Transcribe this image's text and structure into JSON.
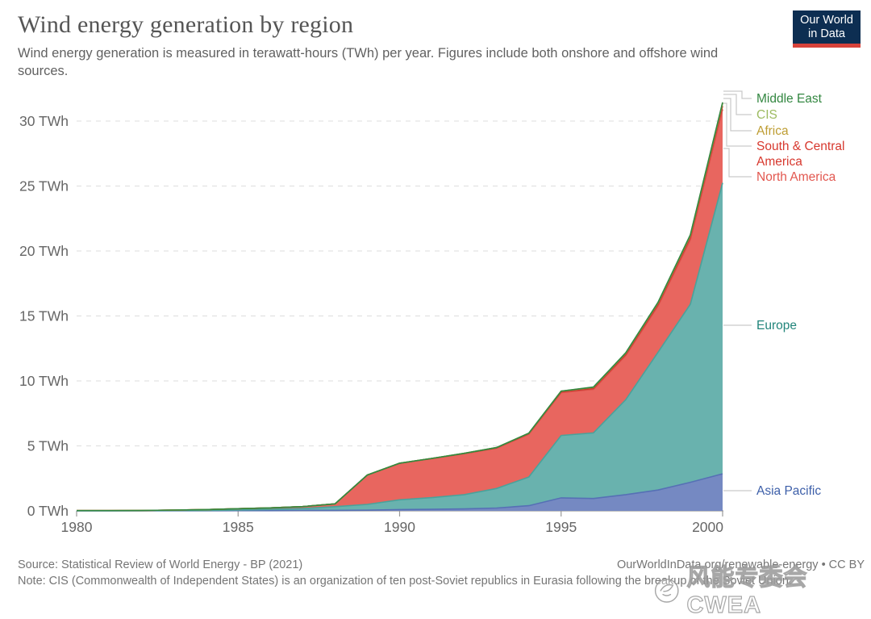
{
  "header": {
    "title": "Wind energy generation by region",
    "subtitle": "Wind energy generation is measured in terawatt-hours (TWh) per year. Figures include both onshore and offshore wind sources.",
    "logo_line1": "Our World",
    "logo_line2": "in Data",
    "logo_bg_color": "#0D2E52",
    "logo_bar_color": "#D7423A"
  },
  "chart_data": {
    "type": "area",
    "stacked": true,
    "title": "Wind energy generation by region",
    "xlabel": "",
    "ylabel": "",
    "unit": "TWh",
    "xlim": [
      1980,
      2000
    ],
    "ylim": [
      0,
      32
    ],
    "grid": "horizontal-dashed",
    "legend_position": "right-edge-connected",
    "x": [
      1980,
      1981,
      1982,
      1983,
      1984,
      1985,
      1986,
      1987,
      1988,
      1989,
      1990,
      1991,
      1992,
      1993,
      1994,
      1995,
      1996,
      1997,
      1998,
      1999,
      2000
    ],
    "xticks": [
      1980,
      1985,
      1990,
      1995,
      2000
    ],
    "yticks": [
      {
        "value": 0,
        "label": "0 TWh"
      },
      {
        "value": 5,
        "label": "5 TWh"
      },
      {
        "value": 10,
        "label": "10 TWh"
      },
      {
        "value": 15,
        "label": "15 TWh"
      },
      {
        "value": 20,
        "label": "20 TWh"
      },
      {
        "value": 25,
        "label": "25 TWh"
      },
      {
        "value": 30,
        "label": "30 TWh"
      }
    ],
    "series": [
      {
        "key": "asia-pacific",
        "name": "Asia Pacific",
        "color": "#3D5FA9",
        "fill": "#7589C2",
        "stroke": "#5670B5",
        "values": [
          0.0,
          0.0,
          0.0,
          0.01,
          0.01,
          0.02,
          0.02,
          0.03,
          0.04,
          0.05,
          0.1,
          0.12,
          0.15,
          0.22,
          0.4,
          1.0,
          0.95,
          1.25,
          1.6,
          2.2,
          2.85
        ]
      },
      {
        "key": "europe",
        "name": "Europe",
        "color": "#22857B",
        "fill": "#69B2AE",
        "stroke": "#4AA29B",
        "values": [
          0.01,
          0.01,
          0.01,
          0.02,
          0.03,
          0.05,
          0.09,
          0.15,
          0.28,
          0.45,
          0.75,
          0.9,
          1.1,
          1.5,
          2.2,
          4.8,
          5.05,
          7.3,
          10.6,
          13.7,
          22.4
        ]
      },
      {
        "key": "north-america",
        "name": "North America",
        "color": "#E2574F",
        "fill": "#E8665F",
        "stroke": "#DD544C",
        "values": [
          0.01,
          0.01,
          0.02,
          0.03,
          0.06,
          0.1,
          0.12,
          0.15,
          0.22,
          2.25,
          2.8,
          3.0,
          3.15,
          3.1,
          3.3,
          3.3,
          3.35,
          3.4,
          3.55,
          4.95,
          5.65
        ]
      },
      {
        "key": "south-central-america",
        "name": "South & Central America",
        "color": "#D7382E",
        "fill": "#D94F44",
        "stroke": "#C8392F",
        "values": [
          0,
          0,
          0,
          0,
          0,
          0,
          0,
          0,
          0,
          0.01,
          0.01,
          0.01,
          0.01,
          0.02,
          0.03,
          0.05,
          0.07,
          0.09,
          0.13,
          0.18,
          0.26
        ]
      },
      {
        "key": "africa",
        "name": "Africa",
        "color": "#BE9D33",
        "fill": "#C8A53D",
        "stroke": "#B3922A",
        "values": [
          0,
          0,
          0,
          0,
          0,
          0,
          0,
          0,
          0,
          0,
          0.01,
          0.01,
          0.02,
          0.03,
          0.04,
          0.06,
          0.08,
          0.1,
          0.13,
          0.16,
          0.2
        ]
      },
      {
        "key": "cis",
        "name": "CIS",
        "color": "#9DBB61",
        "fill": "#A3BF68",
        "stroke": "#8FAC50",
        "values": [
          0,
          0,
          0,
          0,
          0,
          0,
          0,
          0,
          0,
          0,
          0,
          0,
          0,
          0,
          0,
          0,
          0.01,
          0.01,
          0.01,
          0.02,
          0.03
        ]
      },
      {
        "key": "middle-east",
        "name": "Middle East",
        "color": "#338741",
        "fill": "#4C9A4F",
        "stroke": "#338741",
        "values": [
          0,
          0,
          0,
          0,
          0,
          0,
          0,
          0,
          0,
          0,
          0,
          0,
          0,
          0,
          0.01,
          0.01,
          0.02,
          0.02,
          0.03,
          0.04,
          0.05
        ]
      }
    ],
    "axis_color": "#999999",
    "gridline_color": "#dddddd",
    "tick_label_color": "#666666",
    "connector_color": "#c9c9c9"
  },
  "footer": {
    "source": "Source: Statistical Review of World Energy - BP (2021)",
    "note": "Note: CIS (Commonwealth of Independent States) is an organization of ten post-Soviet republics in Eurasia following the breakup of the Soviet Union.",
    "attribution": "OurWorldInData.org/renewable-energy • CC BY"
  },
  "watermark": {
    "text": "风能专委会CWEA"
  }
}
